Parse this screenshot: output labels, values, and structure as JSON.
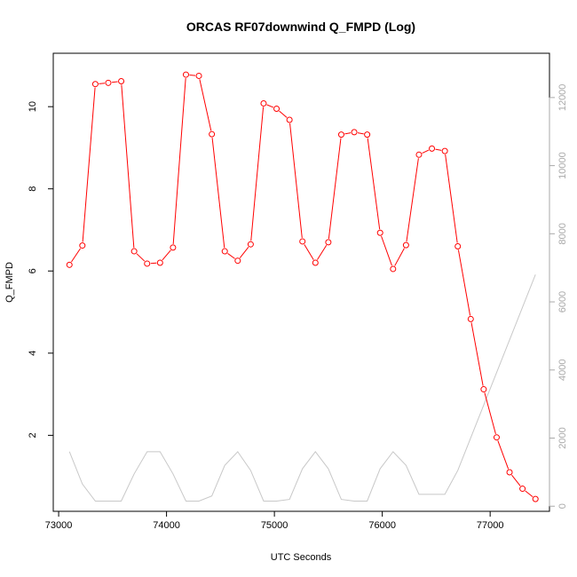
{
  "chart_data": {
    "type": "line",
    "title": "ORCAS RF07downwind Q_FMPD (Log)",
    "xlabel": "UTC Seconds",
    "ylabel": "Q_FMPD",
    "y2label": "",
    "xlim": [
      72950,
      77550
    ],
    "ylim": [
      0.15,
      11.3
    ],
    "y2lim": [
      -150,
      13300
    ],
    "x_ticks": [
      73000,
      74000,
      75000,
      76000,
      77000
    ],
    "y_ticks": [
      2,
      4,
      6,
      8,
      10
    ],
    "y2_ticks": [
      0,
      2000,
      4000,
      6000,
      8000,
      10000,
      12000
    ],
    "grid": false,
    "colors": {
      "primary": "#ff0000",
      "secondary": "#c8c8c8",
      "secondary_axis": "#a9a9a9"
    },
    "series": [
      {
        "axis": "left",
        "style": "line+markers",
        "x": [
          73100,
          73220,
          73340,
          73460,
          73580,
          73700,
          73820,
          73940,
          74060,
          74180,
          74300,
          74420,
          74540,
          74660,
          74780,
          74900,
          75020,
          75140,
          75260,
          75380,
          75500,
          75620,
          75740,
          75860,
          75980,
          76100,
          76220,
          76340,
          76460,
          76580,
          76700,
          76820,
          76940,
          77060,
          77180,
          77300,
          77420
        ],
        "y": [
          6.15,
          6.62,
          10.55,
          10.58,
          10.62,
          6.48,
          6.18,
          6.2,
          6.57,
          10.78,
          10.75,
          9.33,
          6.48,
          6.25,
          6.65,
          10.08,
          9.95,
          9.68,
          6.72,
          6.2,
          6.7,
          9.32,
          9.38,
          9.32,
          6.93,
          6.05,
          6.63,
          8.83,
          8.98,
          8.92,
          6.6,
          4.83,
          3.12,
          1.95,
          1.1,
          0.7,
          0.45
        ]
      },
      {
        "axis": "right",
        "style": "line",
        "x": [
          73100,
          73220,
          73340,
          73460,
          73580,
          73700,
          73820,
          73940,
          74060,
          74180,
          74300,
          74420,
          74540,
          74660,
          74780,
          74900,
          75020,
          75140,
          75260,
          75380,
          75500,
          75620,
          75740,
          75860,
          75980,
          76100,
          76220,
          76340,
          76460,
          76580,
          76700,
          77420
        ],
        "y": [
          1600,
          650,
          150,
          150,
          150,
          950,
          1600,
          1600,
          950,
          150,
          150,
          300,
          1200,
          1600,
          1050,
          150,
          150,
          200,
          1100,
          1600,
          1100,
          200,
          150,
          150,
          1100,
          1600,
          1200,
          350,
          350,
          350,
          1050,
          6800
        ]
      }
    ]
  }
}
